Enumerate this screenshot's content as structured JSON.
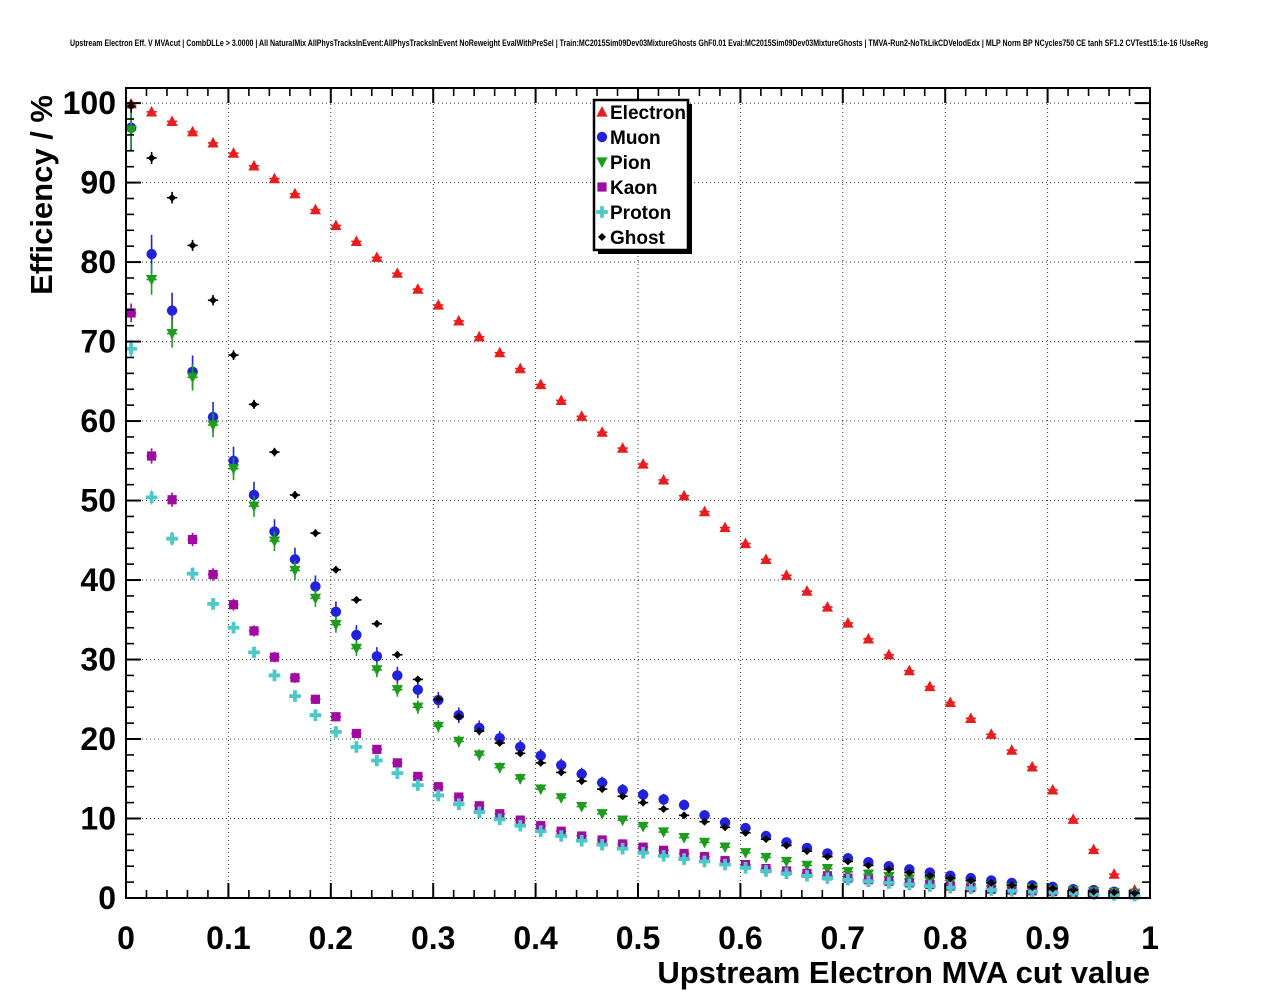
{
  "title": "Upstream Electron Eff. V MVAcut | CombDLLe > 3.0000 | All NaturalMix AllPhysTracksInEvent:AllPhysTracksInEvent NoReweight EvalWithPreSel | Train:MC2015Sim09Dev03MixtureGhosts GhF0.01 Eval:MC2015Sim09Dev03MixtureGhosts | TMVA-Run2-NoTkLikCDVelodEdx | MLP Norm BP NCycles750 CE tanh SF1.2 CVTest15:1e-16 !UseReg",
  "chart_data": {
    "type": "scatter",
    "title": "Upstream Electron Eff. V MVAcut | CombDLLe > 3.0000 | All NaturalMix AllPhysTracksInEvent:AllPhysTracksInEvent NoReweight EvalWithPreSel | Train:MC2015Sim09Dev03MixtureGhosts GhF0.01 Eval:MC2015Sim09Dev03MixtureGhosts | TMVA-Run2-NoTkLikCDVelodEdx | MLP Norm BP NCycles750 CE tanh SF1.2 CVTest15:1e-16 !UseReg",
    "xlabel": "Upstream Electron MVA cut value",
    "ylabel": "Efficiency / %",
    "xlim": [
      0,
      1
    ],
    "ylim": [
      0,
      101.9
    ],
    "grid": true,
    "grid_style": "dotted",
    "legend_position": "top-center",
    "x_ticks": [
      0,
      0.1,
      0.2,
      0.3,
      0.4,
      0.5,
      0.6,
      0.7,
      0.8,
      0.9,
      1
    ],
    "x_tick_labels": [
      "0",
      "0.1",
      "0.2",
      "0.3",
      "0.4",
      "0.5",
      "0.6",
      "0.7",
      "0.8",
      "0.9",
      "1"
    ],
    "y_ticks": [
      0,
      10,
      20,
      30,
      40,
      50,
      60,
      70,
      80,
      90,
      100
    ],
    "y_tick_labels": [
      "0",
      "10",
      "20",
      "30",
      "40",
      "50",
      "60",
      "70",
      "80",
      "90",
      "100"
    ],
    "x_minor_step": 0.02,
    "y_minor_step": 2,
    "xerr": 0.005,
    "x": [
      0.005,
      0.025,
      0.045,
      0.065,
      0.085,
      0.105,
      0.125,
      0.145,
      0.165,
      0.185,
      0.205,
      0.225,
      0.245,
      0.265,
      0.285,
      0.305,
      0.325,
      0.345,
      0.365,
      0.385,
      0.405,
      0.425,
      0.445,
      0.465,
      0.485,
      0.505,
      0.525,
      0.545,
      0.565,
      0.585,
      0.605,
      0.625,
      0.645,
      0.665,
      0.685,
      0.705,
      0.725,
      0.745,
      0.765,
      0.785,
      0.805,
      0.825,
      0.845,
      0.865,
      0.885,
      0.905,
      0.925,
      0.945,
      0.965,
      0.985
    ],
    "series": [
      {
        "name": "Electron",
        "marker": "triangle-up",
        "color": "#e81e1e",
        "yerr_base": 0.15,
        "yerr_scale": 0.004,
        "values": [
          99.9,
          98.9,
          97.7,
          96.4,
          95.0,
          93.7,
          92.1,
          90.5,
          88.6,
          86.6,
          84.6,
          82.6,
          80.6,
          78.6,
          76.6,
          74.6,
          72.6,
          70.6,
          68.6,
          66.6,
          64.6,
          62.6,
          60.6,
          58.6,
          56.6,
          54.6,
          52.6,
          50.6,
          48.6,
          46.6,
          44.6,
          42.6,
          40.6,
          38.6,
          36.6,
          34.6,
          32.6,
          30.6,
          28.6,
          26.6,
          24.6,
          22.6,
          20.6,
          18.6,
          16.5,
          13.6,
          9.9,
          6.1,
          3.0,
          1.0
        ]
      },
      {
        "name": "Muon",
        "marker": "circle",
        "color": "#2222dd",
        "yerr_base": 0.4,
        "yerr_scale": 0.025,
        "values": [
          96.9,
          81.0,
          73.9,
          66.2,
          60.5,
          55.0,
          50.7,
          46.1,
          42.6,
          39.2,
          36.0,
          33.1,
          30.4,
          28.0,
          26.2,
          24.9,
          23.0,
          21.4,
          20.1,
          19.0,
          17.9,
          16.7,
          15.6,
          14.5,
          13.6,
          13.0,
          12.4,
          11.7,
          10.4,
          9.5,
          8.8,
          7.8,
          7.0,
          6.3,
          5.6,
          5.0,
          4.5,
          4.0,
          3.6,
          3.2,
          2.8,
          2.5,
          2.2,
          1.9,
          1.6,
          1.4,
          1.1,
          1.0,
          0.8,
          0.6
        ]
      },
      {
        "name": "Pion",
        "marker": "triangle-down",
        "color": "#1d9c1d",
        "yerr_base": 0.35,
        "yerr_scale": 0.02,
        "values": [
          96.6,
          77.8,
          71.0,
          65.5,
          59.5,
          54.0,
          49.3,
          44.9,
          41.2,
          37.7,
          34.4,
          31.4,
          28.7,
          26.2,
          24.0,
          21.6,
          19.7,
          18.0,
          16.4,
          15.0,
          13.7,
          12.6,
          11.5,
          10.6,
          9.8,
          9.0,
          8.3,
          7.6,
          7.0,
          6.4,
          5.7,
          5.1,
          4.6,
          4.1,
          3.7,
          3.3,
          3.0,
          2.7,
          2.4,
          2.1,
          1.9,
          1.7,
          1.5,
          1.3,
          1.2,
          1.0,
          0.9,
          0.8,
          0.7,
          0.6
        ]
      },
      {
        "name": "Kaon",
        "marker": "square",
        "color": "#a00aa0",
        "yerr_base": 0.3,
        "yerr_scale": 0.012,
        "values": [
          73.6,
          55.6,
          50.1,
          45.1,
          40.7,
          36.9,
          33.6,
          30.3,
          27.7,
          25.0,
          22.8,
          20.7,
          18.7,
          17.0,
          15.3,
          14.0,
          12.7,
          11.6,
          10.6,
          9.8,
          9.1,
          8.4,
          7.8,
          7.3,
          6.8,
          6.4,
          6.0,
          5.6,
          5.2,
          4.7,
          4.2,
          3.7,
          3.4,
          3.1,
          2.8,
          2.5,
          2.3,
          2.1,
          1.9,
          1.7,
          1.5,
          1.3,
          1.1,
          1.0,
          0.9,
          0.8,
          0.7,
          0.6,
          0.5,
          0.4
        ]
      },
      {
        "name": "Proton",
        "marker": "cross",
        "color": "#4cc8c8",
        "yerr_base": 0.3,
        "yerr_scale": 0.012,
        "values": [
          69.1,
          50.4,
          45.2,
          40.8,
          37.0,
          34.0,
          30.9,
          28.0,
          25.4,
          23.0,
          20.9,
          19.0,
          17.3,
          15.7,
          14.2,
          12.9,
          11.8,
          10.8,
          9.9,
          9.1,
          8.4,
          7.8,
          7.2,
          6.7,
          6.2,
          5.7,
          5.3,
          4.9,
          4.6,
          4.2,
          3.8,
          3.4,
          3.1,
          2.8,
          2.5,
          2.3,
          2.1,
          1.9,
          1.7,
          1.5,
          1.3,
          1.2,
          1.0,
          0.9,
          0.8,
          0.7,
          0.6,
          0.5,
          0.4,
          0.3
        ]
      },
      {
        "name": "Ghost",
        "marker": "diamond",
        "color": "#000000",
        "yerr_base": 0.2,
        "yerr_scale": 0.006,
        "values": [
          99.6,
          93.1,
          88.1,
          82.1,
          75.2,
          68.3,
          62.1,
          56.1,
          50.7,
          45.9,
          41.3,
          37.5,
          34.5,
          30.6,
          27.5,
          25.0,
          22.8,
          21.0,
          19.5,
          18.2,
          17.0,
          15.8,
          14.7,
          13.7,
          12.8,
          12.0,
          11.2,
          10.4,
          9.6,
          8.9,
          8.2,
          7.4,
          6.6,
          5.9,
          5.2,
          4.6,
          4.1,
          3.6,
          3.2,
          2.8,
          2.5,
          2.2,
          1.9,
          1.6,
          1.4,
          1.2,
          1.0,
          0.8,
          0.7,
          0.6
        ]
      }
    ],
    "legend": {
      "entries": [
        "Electron",
        "Muon",
        "Pion",
        "Kaon",
        "Proton",
        "Ghost"
      ]
    }
  }
}
